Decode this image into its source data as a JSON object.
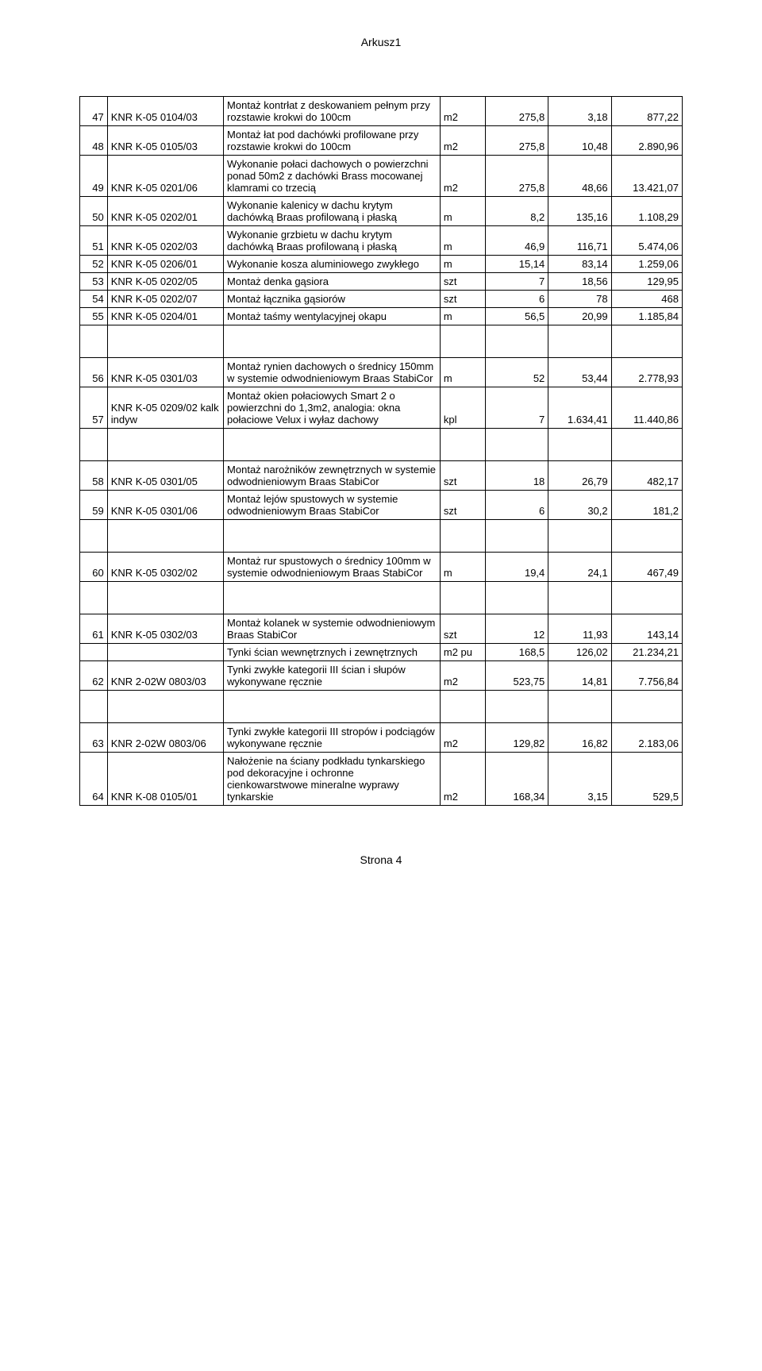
{
  "sheet_title": "Arkusz1",
  "footer": "Strona 4",
  "columns": {
    "unit_label": "",
    "cols": 7
  },
  "rows": [
    {
      "n": "47",
      "ref": "KNR K-05 0104/03",
      "desc": "Montaż kontrłat z deskowaniem pełnym przy rozstawie krokwi do 100cm",
      "unit": "m2",
      "q": "275,8",
      "p": "3,18",
      "v": "877,22"
    },
    {
      "n": "48",
      "ref": "KNR K-05 0105/03",
      "desc": "Montaż łat pod dachówki profilowane przy rozstawie krokwi do 100cm",
      "unit": "m2",
      "q": "275,8",
      "p": "10,48",
      "v": "2.890,96"
    },
    {
      "n": "49",
      "ref": "KNR K-05 0201/06",
      "desc": "Wykonanie połaci dachowych o powierzchni ponad 50m2 z dachówki Brass mocowanej klamrami co trzecią",
      "unit": "m2",
      "q": "275,8",
      "p": "48,66",
      "v": "13.421,07"
    },
    {
      "n": "50",
      "ref": "KNR K-05 0202/01",
      "desc": "Wykonanie kalenicy w dachu krytym dachówką Braas profilowaną i płaską",
      "unit": "m",
      "q": "8,2",
      "p": "135,16",
      "v": "1.108,29"
    },
    {
      "n": "51",
      "ref": "KNR K-05 0202/03",
      "desc": "Wykonanie grzbietu w dachu krytym dachówką Braas profilowaną i płaską",
      "unit": "m",
      "q": "46,9",
      "p": "116,71",
      "v": "5.474,06"
    },
    {
      "n": "52",
      "ref": "KNR K-05 0206/01",
      "desc": "Wykonanie kosza aluminiowego zwykłego",
      "unit": "m",
      "q": "15,14",
      "p": "83,14",
      "v": "1.259,06"
    },
    {
      "n": "53",
      "ref": "KNR K-05 0202/05",
      "desc": "Montaż denka gąsiora",
      "unit": "szt",
      "q": "7",
      "p": "18,56",
      "v": "129,95"
    },
    {
      "n": "54",
      "ref": "KNR K-05 0202/07",
      "desc": "Montaż łącznika gąsiorów",
      "unit": "szt",
      "q": "6",
      "p": "78",
      "v": "468"
    },
    {
      "n": "55",
      "ref": "KNR K-05 0204/01",
      "desc": "Montaż taśmy wentylacyjnej okapu",
      "unit": "m",
      "q": "56,5",
      "p": "20,99",
      "v": "1.185,84"
    },
    {
      "gap": true
    },
    {
      "n": "56",
      "ref": "KNR K-05 0301/03",
      "desc": "Montaż rynien dachowych o średnicy 150mm w systemie odwodnieniowym Braas StabiCor",
      "unit": "m",
      "q": "52",
      "p": "53,44",
      "v": "2.778,93"
    },
    {
      "n": "57",
      "ref": "KNR K-05 0209/02 kalk indyw",
      "desc": "Montaż okien połaciowych Smart 2 o powierzchni do 1,3m2, analogia: okna połaciowe Velux i wyłaz dachowy",
      "unit": "kpl",
      "q": "7",
      "p": "1.634,41",
      "v": "11.440,86"
    },
    {
      "gap": true
    },
    {
      "n": "58",
      "ref": "KNR K-05 0301/05",
      "desc": "Montaż narożników zewnętrznych w systemie odwodnieniowym Braas StabiCor",
      "unit": "szt",
      "q": "18",
      "p": "26,79",
      "v": "482,17"
    },
    {
      "n": "59",
      "ref": "KNR K-05 0301/06",
      "desc": "Montaż lejów spustowych w systemie odwodnieniowym Braas StabiCor",
      "unit": "szt",
      "q": "6",
      "p": "30,2",
      "v": "181,2"
    },
    {
      "gap": true
    },
    {
      "n": "60",
      "ref": "KNR K-05 0302/02",
      "desc": "Montaż rur spustowych o średnicy 100mm w systemie odwodnieniowym Braas StabiCor",
      "unit": "m",
      "q": "19,4",
      "p": "24,1",
      "v": "467,49"
    },
    {
      "gap": true
    },
    {
      "n": "61",
      "ref": "KNR K-05 0302/03",
      "desc": "Montaż kolanek w systemie odwodnieniowym Braas StabiCor",
      "unit": "szt",
      "q": "12",
      "p": "11,93",
      "v": "143,14"
    },
    {
      "n": "",
      "ref": "",
      "desc": "Tynki ścian wewnętrznych i zewnętrznych",
      "unit": "m2 pu",
      "q": "168,5",
      "p": "126,02",
      "v": "21.234,21"
    },
    {
      "n": "62",
      "ref": "KNR 2-02W 0803/03",
      "desc": "Tynki zwykłe kategorii III ścian i słupów wykonywane ręcznie",
      "unit": "m2",
      "q": "523,75",
      "p": "14,81",
      "v": "7.756,84"
    },
    {
      "gap": true
    },
    {
      "n": "63",
      "ref": "KNR 2-02W 0803/06",
      "desc": "Tynki zwykłe kategorii III stropów i podciągów wykonywane ręcznie",
      "unit": "m2",
      "q": "129,82",
      "p": "16,82",
      "v": "2.183,06"
    },
    {
      "n": "64",
      "ref": "KNR K-08 0105/01",
      "desc": "Nałożenie na ściany podkładu tynkarskiego pod dekoracyjne i ochronne cienkowarstwowe mineralne wyprawy tynkarskie",
      "unit": "m2",
      "q": "168,34",
      "p": "3,15",
      "v": "529,5"
    }
  ]
}
